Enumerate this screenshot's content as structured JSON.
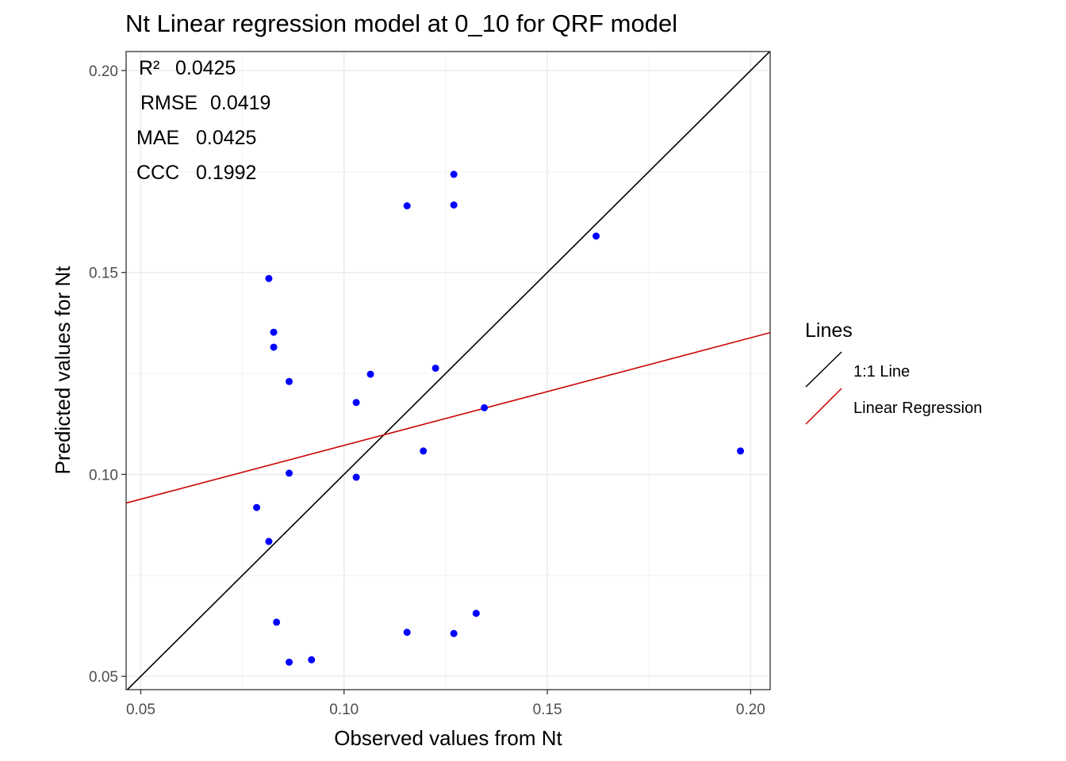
{
  "chart_data": {
    "type": "scatter",
    "title": "Nt  Linear regression model at  0_10  for  QRF  model",
    "xlabel": "Observed values from Nt",
    "ylabel": "Predicted values for Nt",
    "xlim": [
      0.0464,
      0.2048
    ],
    "ylim": [
      0.0467,
      0.2047
    ],
    "x_ticks": [
      0.05,
      0.1,
      0.15,
      0.2
    ],
    "x_tick_labels": [
      "0.05",
      "0.10",
      "0.15",
      "0.20"
    ],
    "y_ticks": [
      0.05,
      0.1,
      0.15,
      0.2
    ],
    "y_tick_labels": [
      "0.05",
      "0.10",
      "0.15",
      "0.20"
    ],
    "grid": true,
    "point_color": "#0000ff",
    "points": [
      {
        "x": 0.0815,
        "y": 0.1485
      },
      {
        "x": 0.0827,
        "y": 0.1352
      },
      {
        "x": 0.0827,
        "y": 0.1315
      },
      {
        "x": 0.0865,
        "y": 0.123
      },
      {
        "x": 0.0865,
        "y": 0.1003
      },
      {
        "x": 0.0785,
        "y": 0.0918
      },
      {
        "x": 0.0815,
        "y": 0.0834
      },
      {
        "x": 0.0834,
        "y": 0.0634
      },
      {
        "x": 0.0865,
        "y": 0.0535
      },
      {
        "x": 0.092,
        "y": 0.0541
      },
      {
        "x": 0.103,
        "y": 0.1178
      },
      {
        "x": 0.103,
        "y": 0.0993
      },
      {
        "x": 0.1065,
        "y": 0.1248
      },
      {
        "x": 0.1155,
        "y": 0.1665
      },
      {
        "x": 0.1155,
        "y": 0.0609
      },
      {
        "x": 0.1195,
        "y": 0.1058
      },
      {
        "x": 0.1225,
        "y": 0.1263
      },
      {
        "x": 0.127,
        "y": 0.1743
      },
      {
        "x": 0.127,
        "y": 0.1667
      },
      {
        "x": 0.127,
        "y": 0.0606
      },
      {
        "x": 0.1325,
        "y": 0.0656
      },
      {
        "x": 0.1345,
        "y": 0.1165
      },
      {
        "x": 0.162,
        "y": 0.159
      },
      {
        "x": 0.1975,
        "y": 0.1058
      }
    ],
    "lines": [
      {
        "name": "1:1 Line",
        "color": "#000000",
        "x": [
          0.0464,
          0.2048
        ],
        "y": [
          0.0464,
          0.2048
        ]
      },
      {
        "name": "Linear Regression",
        "color": "#cc0000",
        "x": [
          0.0464,
          0.2048
        ],
        "y": [
          0.0929,
          0.1351
        ]
      }
    ],
    "legend": {
      "title": "Lines",
      "position": "right",
      "entries": [
        "1:1 Line",
        "Linear Regression"
      ]
    },
    "annotations": [
      {
        "label": "R²",
        "value": "0.0425"
      },
      {
        "label": "RMSE",
        "value": "0.0419"
      },
      {
        "label": "MAE",
        "value": "0.0425"
      },
      {
        "label": "CCC",
        "value": "0.1992"
      }
    ]
  }
}
